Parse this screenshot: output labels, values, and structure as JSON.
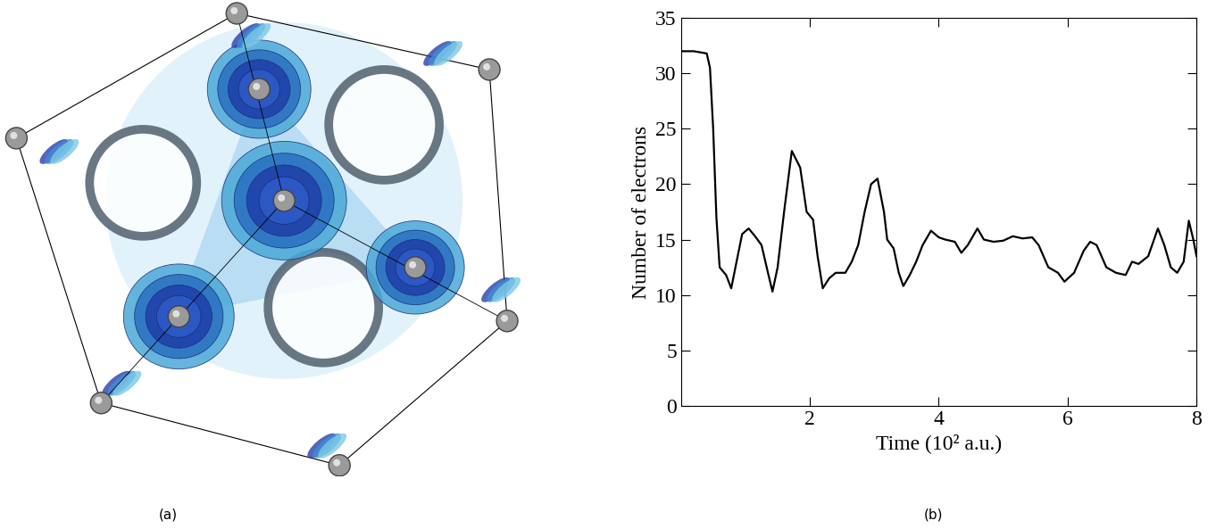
{
  "panel_labels": [
    "(a)",
    "(b)"
  ],
  "chart_data": {
    "type": "line",
    "x_label": "Time (10² a.u.)",
    "y_label": "Number of electrons",
    "color": "#000000",
    "xlim": [
      0,
      8
    ],
    "xticks": [
      2,
      4,
      6,
      8
    ],
    "ylim": [
      0,
      35
    ],
    "yticks": [
      0,
      5,
      10,
      15,
      20,
      25,
      30,
      35
    ],
    "grid": false,
    "x": [
      0.0,
      0.2,
      0.4,
      0.45,
      0.5,
      0.55,
      0.6,
      0.7,
      0.78,
      0.88,
      0.95,
      1.05,
      1.15,
      1.25,
      1.35,
      1.42,
      1.5,
      1.6,
      1.72,
      1.85,
      1.95,
      2.05,
      2.12,
      2.2,
      2.3,
      2.4,
      2.55,
      2.65,
      2.75,
      2.85,
      2.95,
      3.05,
      3.15,
      3.2,
      3.3,
      3.38,
      3.45,
      3.55,
      3.65,
      3.75,
      3.88,
      4.0,
      4.1,
      4.25,
      4.35,
      4.45,
      4.6,
      4.7,
      4.85,
      5.0,
      5.15,
      5.3,
      5.45,
      5.55,
      5.7,
      5.85,
      5.95,
      6.1,
      6.25,
      6.35,
      6.45,
      6.6,
      6.75,
      6.9,
      7.0,
      7.1,
      7.25,
      7.4,
      7.5,
      7.6,
      7.7,
      7.8,
      7.88,
      7.95,
      8.0
    ],
    "values": [
      32.0,
      32.0,
      31.8,
      30.5,
      25.0,
      17.0,
      12.5,
      11.8,
      10.6,
      13.5,
      15.5,
      16.0,
      15.3,
      14.5,
      12.0,
      10.3,
      12.5,
      17.5,
      23.0,
      21.5,
      17.5,
      16.8,
      13.5,
      10.6,
      11.5,
      12.0,
      12.0,
      13.0,
      14.5,
      17.5,
      20.0,
      20.5,
      17.5,
      15.0,
      14.2,
      12.0,
      10.8,
      11.8,
      13.0,
      14.5,
      15.8,
      15.2,
      15.0,
      14.8,
      13.8,
      14.5,
      16.0,
      15.0,
      14.8,
      14.9,
      15.3,
      15.1,
      15.2,
      14.5,
      12.5,
      12.0,
      11.2,
      12.0,
      14.0,
      14.8,
      14.5,
      12.5,
      12.0,
      11.8,
      13.0,
      12.8,
      13.5,
      16.0,
      14.5,
      12.5,
      12.0,
      13.0,
      16.7,
      15.0,
      13.5
    ]
  }
}
